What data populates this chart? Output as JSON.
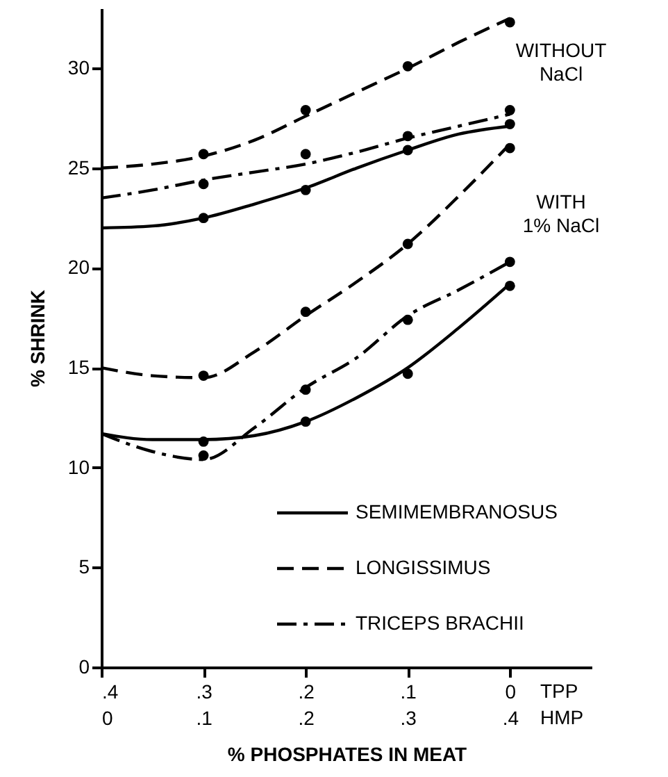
{
  "chart_data": {
    "type": "line",
    "xlabel": "% PHOSPHATES IN MEAT",
    "ylabel": "% SHRINK",
    "xlim": [
      0.4,
      -0.08
    ],
    "xticks": [
      {
        "value": 0.4,
        "label": ".4"
      },
      {
        "value": 0.3,
        "label": ".3"
      },
      {
        "value": 0.2,
        "label": ".2"
      },
      {
        "value": 0.1,
        "label": ".1"
      },
      0
    ],
    "x2lim": [
      0,
      0.48
    ],
    "x2ticks": [
      0,
      {
        "value": 0.1,
        "label": ".1"
      },
      {
        "value": 0.2,
        "label": ".2"
      },
      {
        "value": 0.3,
        "label": ".3"
      },
      {
        "value": 0.4,
        "label": ".4"
      }
    ],
    "ylim": [
      0,
      33
    ],
    "yticks": [
      0,
      5,
      10,
      15,
      20,
      25,
      30
    ],
    "legend": "bottom right",
    "annotations": [
      "WITHOUT NaCl",
      "WITH 1% NaCl",
      "TPP",
      "HMP"
    ],
    "series": [
      {
        "name": "SEMIMEMBRANOSUS",
        "color": "#000000",
        "line_style": "solid",
        "x": [
          0.4,
          0.35,
          0.3,
          0.25,
          0.2,
          0.15,
          0.1,
          0.05,
          0
        ],
        "values": [
          22.0,
          22.1,
          22.5,
          23.2,
          24.0,
          25.0,
          25.9,
          26.7,
          27.1
        ]
      },
      {
        "name": "LONGISSIMUS",
        "color": "#000000",
        "line_style": "dashed",
        "x": [
          0.4,
          0.35,
          0.3,
          0.25,
          0.2,
          0.15,
          0.1,
          0.05,
          0
        ],
        "values": [
          25.0,
          25.2,
          25.6,
          26.4,
          27.6,
          28.8,
          30.0,
          31.3,
          32.5
        ]
      },
      {
        "name": "TRICEPS BRACHII",
        "color": "#000000",
        "line_style": "dashdot",
        "x": [
          0.4,
          0.35,
          0.3,
          0.25,
          0.2,
          0.15,
          0.1,
          0.05,
          0
        ],
        "values": [
          23.5,
          23.9,
          24.4,
          24.8,
          25.2,
          25.8,
          26.5,
          27.1,
          27.7
        ]
      },
      {
        "color": "#000000",
        "line_style": "solid",
        "x": [
          0.4,
          0.35,
          0.3,
          0.25,
          0.2,
          0.15,
          0.1,
          0.05,
          0
        ],
        "values": [
          11.7,
          11.4,
          11.4,
          11.6,
          12.3,
          13.5,
          15.0,
          17.0,
          19.2
        ]
      },
      {
        "color": "#000000",
        "line_style": "dashed",
        "x": [
          0.4,
          0.35,
          0.3,
          0.25,
          0.2,
          0.15,
          0.1,
          0.05,
          0
        ],
        "values": [
          15.0,
          14.6,
          14.5,
          15.8,
          17.6,
          19.3,
          21.2,
          23.6,
          26.2
        ]
      },
      {
        "color": "#000000",
        "line_style": "dashdot",
        "x": [
          0.4,
          0.35,
          0.3,
          0.25,
          0.2,
          0.15,
          0.1,
          0.05,
          0
        ],
        "values": [
          11.7,
          10.8,
          10.4,
          12.0,
          14.0,
          15.5,
          17.6,
          18.9,
          20.3
        ]
      },
      {
        "type": "scatter",
        "color": "#000000",
        "marker": "circle",
        "x": [
          0.3,
          0.2,
          0.1,
          0
        ],
        "values": [
          22.5,
          23.9,
          25.9,
          27.2
        ]
      },
      {
        "type": "scatter",
        "color": "#000000",
        "marker": "circle",
        "x": [
          0.3,
          0.2,
          0.1,
          0
        ],
        "values": [
          25.7,
          27.9,
          30.1,
          32.3
        ]
      },
      {
        "type": "scatter",
        "color": "#000000",
        "marker": "circle",
        "x": [
          0.3,
          0.2,
          0.1,
          0
        ],
        "values": [
          24.2,
          25.7,
          26.6,
          27.9
        ]
      },
      {
        "type": "scatter",
        "color": "#000000",
        "marker": "circle",
        "x": [
          0.3,
          0.2,
          0.1,
          0
        ],
        "values": [
          11.3,
          12.3,
          14.7,
          19.1
        ]
      },
      {
        "type": "scatter",
        "color": "#000000",
        "marker": "circle",
        "x": [
          0.3,
          0.2,
          0.1,
          0
        ],
        "values": [
          14.6,
          17.8,
          21.2,
          26.0
        ]
      },
      {
        "type": "scatter",
        "color": "#000000",
        "marker": "circle",
        "x": [
          0.3,
          0.2,
          0.1,
          0
        ],
        "values": [
          10.6,
          13.9,
          17.4,
          20.3
        ]
      }
    ]
  }
}
